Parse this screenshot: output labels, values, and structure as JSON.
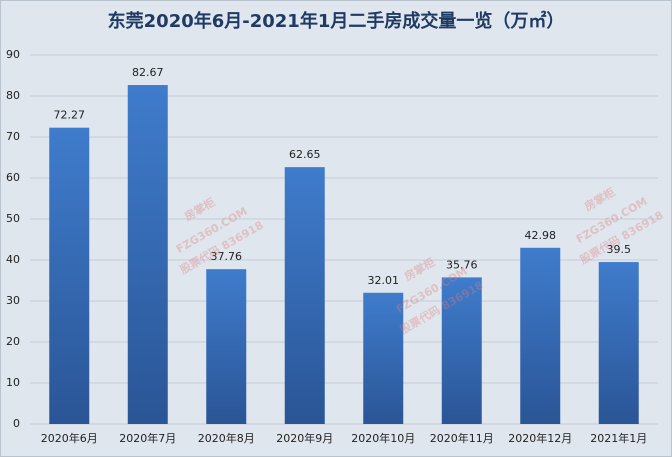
{
  "chart_data": {
    "type": "bar",
    "title": "东莞2020年6月-2021年1月二手房成交量一览（万㎡）",
    "categories": [
      "2020年6月",
      "2020年7月",
      "2020年8月",
      "2020年9月",
      "2020年10月",
      "2020年11月",
      "2020年12月",
      "2021年1月"
    ],
    "values": [
      72.27,
      82.67,
      37.76,
      62.65,
      32.01,
      35.76,
      42.98,
      39.5
    ],
    "color": "#3a72c0",
    "ylim": [
      0,
      90
    ],
    "yticks": [
      0,
      10,
      20,
      30,
      40,
      50,
      60,
      70,
      80,
      90
    ],
    "grid": true,
    "watermark": "房掌柜",
    "watermark_site": "FZG360.COM",
    "watermark_code": "股票代码 836918"
  }
}
